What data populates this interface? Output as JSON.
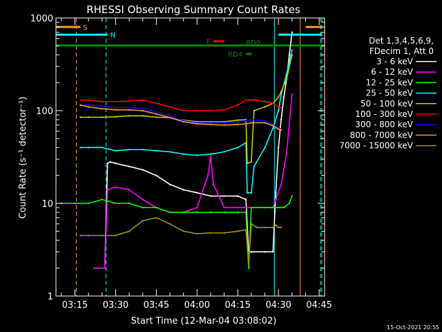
{
  "chart_data": {
    "type": "line",
    "title": "RHESSI Observing Summary Count Rates",
    "xlabel": "Start Time (12-Mar-04 03:08:02)",
    "ylabel": "Count Rate (s⁻¹ detector⁻¹)",
    "yscale": "log",
    "ylim": [
      1,
      1000
    ],
    "xlim_minutes": [
      8,
      107
    ],
    "x_units": "minutes after 03:00 UT",
    "x_ticks": [
      {
        "label": "03:15",
        "value": 15
      },
      {
        "label": "03:30",
        "value": 30
      },
      {
        "label": "03:45",
        "value": 45
      },
      {
        "label": "04:00",
        "value": 60
      },
      {
        "label": "04:15",
        "value": 75
      },
      {
        "label": "04:30",
        "value": 90
      },
      {
        "label": "04:45",
        "value": 105
      }
    ],
    "y_ticks": [
      {
        "label": "1",
        "value": 1
      },
      {
        "label": "10",
        "value": 10
      },
      {
        "label": "100",
        "value": 100
      },
      {
        "label": "1000",
        "value": 1000
      }
    ],
    "legend_header": [
      "Det 1,3,4,5,6,9,",
      "FDecim 1, Att 0"
    ],
    "series": [
      {
        "name": "3 - 6 keV",
        "color": "#ffffff",
        "x": [
          8,
          26,
          27,
          28,
          30,
          35,
          40,
          45,
          50,
          55,
          60,
          65,
          70,
          75,
          78,
          79,
          80,
          85,
          88,
          89,
          90,
          91,
          92,
          93,
          94,
          95
        ],
        "values": [
          null,
          2,
          27,
          28,
          27,
          25,
          23,
          20,
          16,
          14,
          13,
          12,
          12,
          12,
          11,
          3,
          3,
          3,
          3,
          13,
          40,
          80,
          140,
          220,
          400,
          700
        ]
      },
      {
        "name": "6 - 12 keV",
        "color": "#ff00ff",
        "x": [
          8,
          22,
          26,
          27,
          30,
          35,
          40,
          45,
          50,
          55,
          60,
          64,
          65,
          66,
          68,
          70,
          75,
          78,
          80,
          82,
          85,
          87,
          88,
          89,
          91,
          93,
          95
        ],
        "values": [
          null,
          2,
          2,
          14,
          15,
          14,
          11,
          9,
          8,
          8,
          9,
          20,
          32,
          16,
          12,
          9,
          9,
          9,
          9,
          9,
          9,
          9,
          9,
          11,
          16,
          35,
          150
        ]
      },
      {
        "name": "12 - 25 keV",
        "color": "#00ff00",
        "x": [
          10,
          15,
          20,
          25,
          30,
          35,
          40,
          45,
          50,
          55,
          60,
          65,
          70,
          75,
          78,
          79,
          80,
          85,
          90,
          92,
          94,
          95
        ],
        "values": [
          10,
          10,
          10,
          11,
          10,
          10,
          9,
          9,
          8,
          8,
          8,
          8,
          8,
          8,
          8,
          2,
          9,
          9,
          9,
          9,
          10,
          12
        ]
      },
      {
        "name": "25 - 50 keV",
        "color": "#00ffff",
        "x": [
          17,
          20,
          25,
          30,
          35,
          40,
          45,
          50,
          55,
          60,
          65,
          70,
          75,
          78,
          78.5,
          79,
          80,
          81,
          85,
          88,
          90,
          91,
          93,
          95
        ],
        "values": [
          40,
          40,
          40,
          37,
          38,
          38,
          37,
          36,
          34,
          33,
          34,
          36,
          40,
          45,
          13,
          13,
          13,
          25,
          40,
          65,
          100,
          150,
          250,
          450
        ]
      },
      {
        "name": "50 - 100 keV",
        "color": "#cccc00",
        "x": [
          17,
          20,
          25,
          30,
          35,
          40,
          45,
          50,
          55,
          60,
          65,
          70,
          75,
          78,
          78.5,
          80,
          81,
          85,
          88,
          90,
          91,
          93,
          95
        ],
        "values": [
          85,
          85,
          85,
          86,
          88,
          88,
          85,
          84,
          79,
          76,
          76,
          76,
          79,
          80,
          27,
          28,
          100,
          110,
          120,
          140,
          160,
          220,
          400
        ]
      },
      {
        "name": "100 - 300 keV",
        "color": "#ff0000",
        "x": [
          17,
          20,
          25,
          30,
          35,
          40,
          45,
          50,
          55,
          60,
          65,
          70,
          75,
          78,
          80,
          81,
          85,
          88,
          90,
          91
        ],
        "values": [
          130,
          130,
          125,
          125,
          127,
          130,
          120,
          110,
          100,
          100,
          100,
          102,
          115,
          130,
          130,
          130,
          125,
          120,
          110,
          108
        ]
      },
      {
        "name": "300 - 800 keV",
        "color": "#0000ff",
        "x": [
          17,
          20,
          25,
          30,
          35,
          40,
          45,
          50,
          55,
          60,
          65,
          70,
          75,
          78,
          80,
          85,
          88,
          90,
          91
        ],
        "values": [
          115,
          115,
          112,
          108,
          108,
          106,
          97,
          87,
          78,
          74,
          74,
          74,
          76,
          78,
          80,
          78,
          70,
          65,
          63
        ]
      },
      {
        "name": "800 - 7000 keV",
        "color": "#ff9933",
        "x": [
          17,
          20,
          25,
          30,
          35,
          40,
          45,
          50,
          55,
          60,
          65,
          70,
          75,
          78,
          80,
          85,
          88,
          90,
          91
        ],
        "values": [
          115,
          110,
          105,
          102,
          102,
          100,
          92,
          84,
          76,
          72,
          71,
          70,
          71,
          72,
          74,
          74,
          69,
          63,
          62
        ]
      },
      {
        "name": "7000 - 15000 keV",
        "color": "#999900",
        "x": [
          17,
          20,
          25,
          30,
          35,
          40,
          45,
          50,
          55,
          60,
          65,
          70,
          75,
          78,
          79,
          80,
          82,
          85,
          88,
          89,
          90,
          91
        ],
        "values": [
          4.5,
          4.5,
          4.5,
          4.5,
          5,
          6.5,
          7,
          6,
          5,
          4.7,
          4.8,
          4.8,
          5,
          5.2,
          2.2,
          6,
          5.5,
          5.5,
          5.5,
          5.8,
          5.5,
          5.5
        ]
      }
    ],
    "flag_bars": [
      {
        "label": "S",
        "color": "#ff9933",
        "y": 800,
        "segments": [
          [
            8,
            17
          ],
          [
            100,
            106
          ]
        ]
      },
      {
        "label": "N",
        "color": "#00ffff",
        "y": 660,
        "segments": [
          [
            8,
            27
          ],
          [
            90,
            106
          ]
        ]
      },
      {
        "label": "F",
        "color": "#ff0000",
        "y": 560,
        "segments": [
          [
            66,
            70
          ]
        ]
      },
      {
        "label": "RD0",
        "color": "#008800",
        "y": 505,
        "segments": [
          [
            8,
            107
          ]
        ]
      },
      {
        "label": "RD4",
        "color": "#008800",
        "y": 410,
        "segments": [
          [
            78,
            80
          ]
        ]
      }
    ],
    "vertical_markers": [
      {
        "x": 15.5,
        "color": "#ff9933",
        "style": "dashed"
      },
      {
        "x": 26.5,
        "color": "#00ffff",
        "style": "dashed"
      },
      {
        "x": 88.5,
        "color": "#00ffff",
        "style": "solid"
      },
      {
        "x": 98,
        "color": "#ff9933",
        "style": "solid"
      },
      {
        "x": 105.5,
        "color": "#00ffff",
        "style": "dashed"
      },
      {
        "x": 106,
        "color": "#ff9933",
        "style": "dashed"
      }
    ],
    "footer_date": "15-Oct-2021 20:55"
  }
}
